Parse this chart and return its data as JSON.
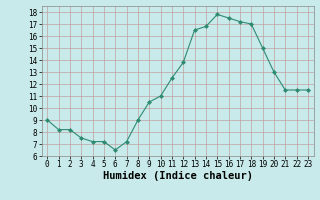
{
  "x": [
    0,
    1,
    2,
    3,
    4,
    5,
    6,
    7,
    8,
    9,
    10,
    11,
    12,
    13,
    14,
    15,
    16,
    17,
    18,
    19,
    20,
    21,
    22,
    23
  ],
  "y": [
    9.0,
    8.2,
    8.2,
    7.5,
    7.2,
    7.2,
    6.5,
    7.2,
    9.0,
    10.5,
    11.0,
    12.5,
    13.8,
    16.5,
    16.8,
    17.8,
    17.5,
    17.2,
    17.0,
    15.0,
    13.0,
    11.5,
    11.5,
    11.5
  ],
  "line_color": "#2e8b72",
  "marker": "D",
  "marker_size": 2,
  "background_color": "#c8eaea",
  "grid_color": "#c0a0a0",
  "xlabel": "Humidex (Indice chaleur)",
  "ylabel": "",
  "xlim": [
    -0.5,
    23.5
  ],
  "ylim": [
    6,
    18.5
  ],
  "yticks": [
    6,
    7,
    8,
    9,
    10,
    11,
    12,
    13,
    14,
    15,
    16,
    17,
    18
  ],
  "xticks": [
    0,
    1,
    2,
    3,
    4,
    5,
    6,
    7,
    8,
    9,
    10,
    11,
    12,
    13,
    14,
    15,
    16,
    17,
    18,
    19,
    20,
    21,
    22,
    23
  ],
  "tick_fontsize": 5.5,
  "xlabel_fontsize": 7.5
}
